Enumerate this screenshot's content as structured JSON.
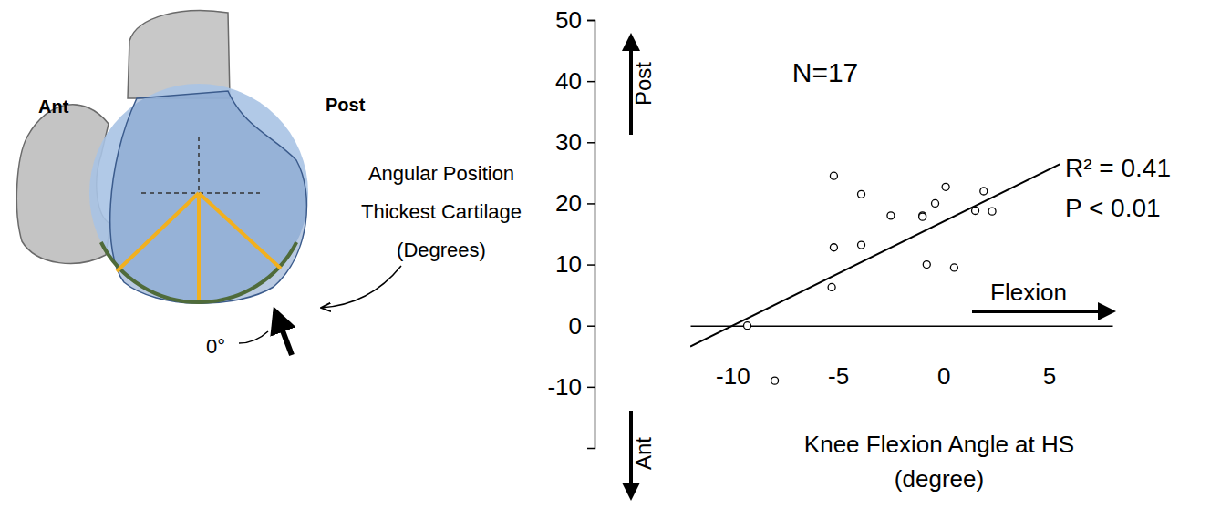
{
  "chart_data": {
    "type": "scatter",
    "x": [
      -9.3,
      -8,
      -5.2,
      -5.2,
      -5.3,
      -3.9,
      -3.9,
      -2.5,
      -1,
      -1,
      -0.8,
      -0.4,
      0.1,
      0.5,
      1.5,
      1.9,
      2.3
    ],
    "values": [
      0,
      -9,
      24.5,
      12.8,
      6.3,
      21.5,
      13.2,
      18,
      18,
      17.8,
      10,
      20,
      22.7,
      9.5,
      18.8,
      22,
      18.7
    ],
    "trend_line": {
      "x": [
        -12,
        5.5
      ],
      "values": [
        -3.4,
        26.4
      ]
    },
    "xlim": [
      -12,
      8
    ],
    "ylim": [
      -20,
      50
    ],
    "xticks": [
      -10,
      -5,
      0,
      5
    ],
    "yticks": [
      -10,
      0,
      10,
      20,
      30,
      40,
      50
    ],
    "x_label": [
      "Knee Flexion Angle at HS",
      "(degree)"
    ],
    "y_direction_labels": {
      "up": "Post",
      "down": "Ant"
    },
    "x_direction_label": "Flexion",
    "annotations": [
      "N=17",
      "R² = 0.41",
      "P < 0.01"
    ],
    "marker": "circle-open",
    "color": "#000000",
    "grid": false
  },
  "diagram": {
    "ant": "Ant",
    "post": "Post",
    "caption": [
      "Angular Position",
      "Thickest Cartilage",
      "(Degrees)"
    ],
    "zero": "0°"
  }
}
